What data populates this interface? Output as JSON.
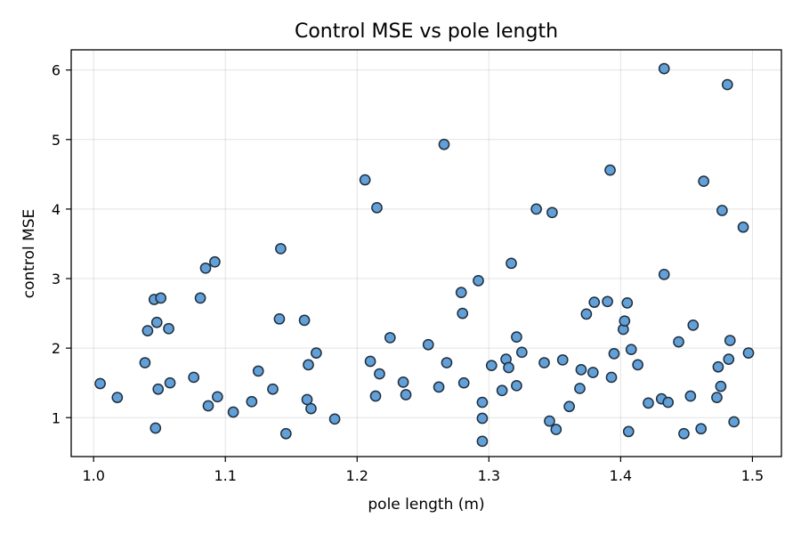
{
  "chart_data": {
    "type": "scatter",
    "title": "Control MSE vs pole length",
    "xlabel": "pole length (m)",
    "ylabel": "control MSE",
    "xlim": [
      0.983,
      1.522
    ],
    "ylim": [
      0.44,
      6.29
    ],
    "xticks": [
      1.0,
      1.1,
      1.2,
      1.3,
      1.4,
      1.5
    ],
    "xtick_labels": [
      "1.0",
      "1.1",
      "1.2",
      "1.3",
      "1.4",
      "1.5"
    ],
    "yticks": [
      1,
      2,
      3,
      4,
      5,
      6
    ],
    "ytick_labels": [
      "1",
      "2",
      "3",
      "4",
      "5",
      "6"
    ],
    "grid": true,
    "points": [
      {
        "x": 1.005,
        "y": 1.49
      },
      {
        "x": 1.018,
        "y": 1.29
      },
      {
        "x": 1.039,
        "y": 1.79
      },
      {
        "x": 1.041,
        "y": 2.25
      },
      {
        "x": 1.046,
        "y": 2.7
      },
      {
        "x": 1.047,
        "y": 0.85
      },
      {
        "x": 1.048,
        "y": 2.37
      },
      {
        "x": 1.049,
        "y": 1.41
      },
      {
        "x": 1.051,
        "y": 2.72
      },
      {
        "x": 1.057,
        "y": 2.28
      },
      {
        "x": 1.058,
        "y": 1.5
      },
      {
        "x": 1.076,
        "y": 1.58
      },
      {
        "x": 1.081,
        "y": 2.72
      },
      {
        "x": 1.085,
        "y": 3.15
      },
      {
        "x": 1.087,
        "y": 1.17
      },
      {
        "x": 1.092,
        "y": 3.24
      },
      {
        "x": 1.094,
        "y": 1.3
      },
      {
        "x": 1.106,
        "y": 1.08
      },
      {
        "x": 1.12,
        "y": 1.23
      },
      {
        "x": 1.125,
        "y": 1.67
      },
      {
        "x": 1.136,
        "y": 1.41
      },
      {
        "x": 1.141,
        "y": 2.42
      },
      {
        "x": 1.142,
        "y": 3.43
      },
      {
        "x": 1.146,
        "y": 0.77
      },
      {
        "x": 1.16,
        "y": 2.4
      },
      {
        "x": 1.162,
        "y": 1.26
      },
      {
        "x": 1.163,
        "y": 1.76
      },
      {
        "x": 1.165,
        "y": 1.13
      },
      {
        "x": 1.169,
        "y": 1.93
      },
      {
        "x": 1.183,
        "y": 0.98
      },
      {
        "x": 1.206,
        "y": 4.42
      },
      {
        "x": 1.21,
        "y": 1.81
      },
      {
        "x": 1.214,
        "y": 1.31
      },
      {
        "x": 1.215,
        "y": 4.02
      },
      {
        "x": 1.217,
        "y": 1.63
      },
      {
        "x": 1.225,
        "y": 2.15
      },
      {
        "x": 1.235,
        "y": 1.51
      },
      {
        "x": 1.237,
        "y": 1.33
      },
      {
        "x": 1.254,
        "y": 2.05
      },
      {
        "x": 1.262,
        "y": 1.44
      },
      {
        "x": 1.266,
        "y": 4.93
      },
      {
        "x": 1.268,
        "y": 1.79
      },
      {
        "x": 1.279,
        "y": 2.8
      },
      {
        "x": 1.28,
        "y": 2.5
      },
      {
        "x": 1.281,
        "y": 1.5
      },
      {
        "x": 1.292,
        "y": 2.97
      },
      {
        "x": 1.295,
        "y": 1.22
      },
      {
        "x": 1.295,
        "y": 0.99
      },
      {
        "x": 1.295,
        "y": 0.66
      },
      {
        "x": 1.302,
        "y": 1.75
      },
      {
        "x": 1.31,
        "y": 1.39
      },
      {
        "x": 1.313,
        "y": 1.84
      },
      {
        "x": 1.315,
        "y": 1.72
      },
      {
        "x": 1.317,
        "y": 3.22
      },
      {
        "x": 1.321,
        "y": 2.16
      },
      {
        "x": 1.321,
        "y": 1.46
      },
      {
        "x": 1.325,
        "y": 1.94
      },
      {
        "x": 1.336,
        "y": 4.0
      },
      {
        "x": 1.342,
        "y": 1.79
      },
      {
        "x": 1.346,
        "y": 0.95
      },
      {
        "x": 1.348,
        "y": 3.95
      },
      {
        "x": 1.351,
        "y": 0.83
      },
      {
        "x": 1.356,
        "y": 1.83
      },
      {
        "x": 1.361,
        "y": 1.16
      },
      {
        "x": 1.369,
        "y": 1.42
      },
      {
        "x": 1.37,
        "y": 1.69
      },
      {
        "x": 1.374,
        "y": 2.49
      },
      {
        "x": 1.379,
        "y": 1.65
      },
      {
        "x": 1.38,
        "y": 2.66
      },
      {
        "x": 1.39,
        "y": 2.67
      },
      {
        "x": 1.392,
        "y": 4.56
      },
      {
        "x": 1.393,
        "y": 1.58
      },
      {
        "x": 1.395,
        "y": 1.92
      },
      {
        "x": 1.402,
        "y": 2.27
      },
      {
        "x": 1.403,
        "y": 2.39
      },
      {
        "x": 1.405,
        "y": 2.65
      },
      {
        "x": 1.406,
        "y": 0.8
      },
      {
        "x": 1.408,
        "y": 1.98
      },
      {
        "x": 1.413,
        "y": 1.76
      },
      {
        "x": 1.421,
        "y": 1.21
      },
      {
        "x": 1.431,
        "y": 1.27
      },
      {
        "x": 1.433,
        "y": 3.06
      },
      {
        "x": 1.433,
        "y": 6.02
      },
      {
        "x": 1.436,
        "y": 1.22
      },
      {
        "x": 1.444,
        "y": 2.09
      },
      {
        "x": 1.448,
        "y": 0.77
      },
      {
        "x": 1.453,
        "y": 1.31
      },
      {
        "x": 1.455,
        "y": 2.33
      },
      {
        "x": 1.461,
        "y": 0.84
      },
      {
        "x": 1.463,
        "y": 4.4
      },
      {
        "x": 1.473,
        "y": 1.29
      },
      {
        "x": 1.474,
        "y": 1.73
      },
      {
        "x": 1.476,
        "y": 1.45
      },
      {
        "x": 1.477,
        "y": 3.98
      },
      {
        "x": 1.481,
        "y": 5.79
      },
      {
        "x": 1.482,
        "y": 1.84
      },
      {
        "x": 1.483,
        "y": 2.11
      },
      {
        "x": 1.486,
        "y": 0.94
      },
      {
        "x": 1.493,
        "y": 3.74
      },
      {
        "x": 1.497,
        "y": 1.93
      }
    ]
  }
}
